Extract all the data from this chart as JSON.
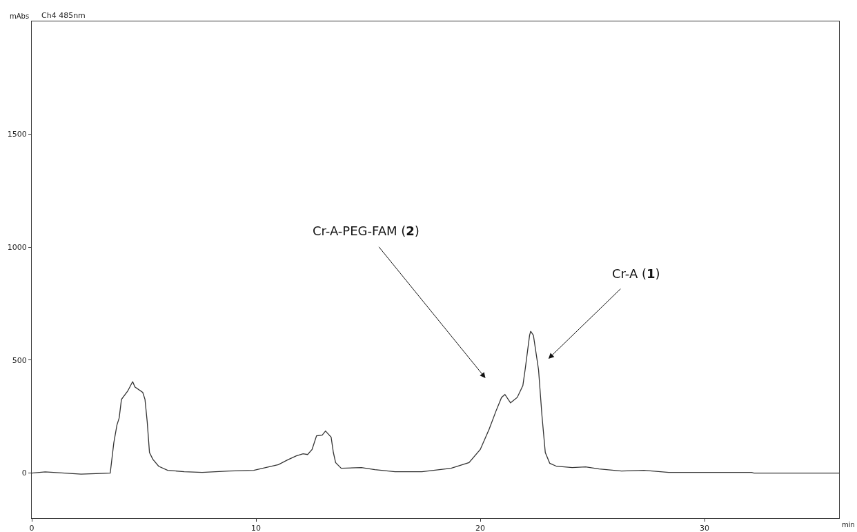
{
  "chart_data": {
    "type": "line",
    "title": "Ch4 485nm",
    "xlabel": "min",
    "ylabel": "mAbs",
    "x": [
      0,
      0.6,
      2.2,
      3.5,
      3.66,
      3.8,
      3.9,
      4.0,
      4.28,
      4.5,
      4.6,
      4.95,
      5.05,
      5.15,
      5.25,
      5.4,
      5.66,
      6.06,
      6.8,
      7.6,
      8.8,
      9.9,
      10.7,
      11.0,
      11.4,
      11.8,
      12.1,
      12.3,
      12.5,
      12.7,
      12.95,
      13.1,
      13.35,
      13.45,
      13.55,
      13.8,
      14.7,
      15.3,
      16.2,
      17.4,
      18.7,
      19.5,
      20.0,
      20.4,
      20.7,
      20.95,
      21.1,
      21.35,
      21.65,
      21.9,
      22.0,
      22.2,
      22.25,
      22.37,
      22.6,
      22.75,
      22.9,
      23.1,
      23.4,
      24.1,
      24.7,
      25.3,
      26.3,
      27.3,
      28.4,
      32.1,
      32.2,
      36.0
    ],
    "series": [
      {
        "color": "#333333",
        "values": [
          0,
          5,
          -5,
          0,
          134,
          213,
          244,
          326,
          363,
          405,
          381,
          357,
          326,
          226,
          91,
          61,
          30,
          12,
          6,
          3,
          9,
          12,
          30,
          37,
          58,
          76,
          85,
          82,
          104,
          165,
          168,
          186,
          159,
          91,
          46,
          21,
          24,
          15,
          6,
          6,
          21,
          46,
          104,
          195,
          274,
          335,
          348,
          311,
          335,
          387,
          457,
          610,
          628,
          610,
          457,
          256,
          91,
          43,
          30,
          24,
          27,
          18,
          9,
          12,
          3,
          3,
          0,
          0
        ]
      }
    ],
    "xlim": [
      0,
      36
    ],
    "xticks": [
      0,
      10,
      20,
      30
    ],
    "ylim": [
      -200,
      2000
    ],
    "yticks": [
      0,
      500,
      1000,
      1500
    ],
    "grid": false,
    "marker": "none",
    "line_style": "solid",
    "annotations": [
      "Cr-A-PEG-FAM (2)",
      "Cr-A (1)"
    ]
  }
}
